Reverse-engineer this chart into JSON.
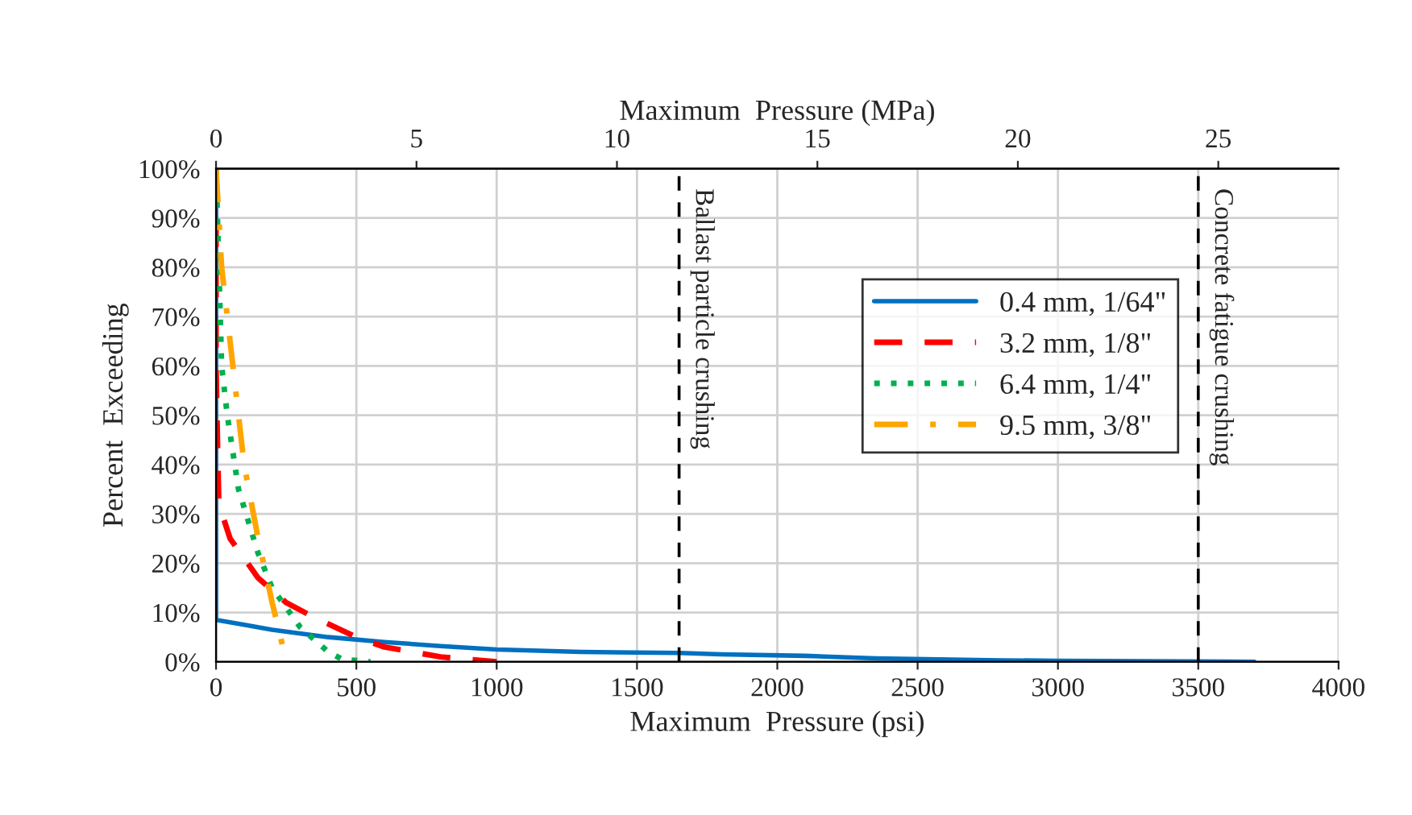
{
  "chart_data": {
    "type": "line",
    "xlabel": "Maximum  Pressure (psi)",
    "ylabel": "Percent  Exceeding",
    "x2label": "Maximum  Pressure (MPa)",
    "xlim": [
      0,
      4000
    ],
    "xticks": [
      0,
      500,
      1000,
      1500,
      2000,
      2500,
      3000,
      3500,
      4000
    ],
    "ylim": [
      0,
      100
    ],
    "yticks": [
      {
        "value": 0,
        "label": "0%"
      },
      {
        "value": 10,
        "label": "10%"
      },
      {
        "value": 20,
        "label": "20%"
      },
      {
        "value": 30,
        "label": "30%"
      },
      {
        "value": 40,
        "label": "40%"
      },
      {
        "value": 50,
        "label": "50%"
      },
      {
        "value": 60,
        "label": "60%"
      },
      {
        "value": 70,
        "label": "70%"
      },
      {
        "value": 80,
        "label": "80%"
      },
      {
        "value": 90,
        "label": "90%"
      },
      {
        "value": 100,
        "label": "100%"
      }
    ],
    "x2lim": [
      0,
      28
    ],
    "x2ticks": [
      0,
      5,
      10,
      15,
      20,
      25
    ],
    "grid": true,
    "legend": "center right",
    "series": [
      {
        "name": "0.4 mm, 1/64\"",
        "color": "#0070c0",
        "line_style": "solid",
        "x": [
          0,
          0,
          100,
          200,
          400,
          600,
          800,
          1000,
          1300,
          1650,
          1800,
          2100,
          2350,
          2800,
          3000,
          3700
        ],
        "values": [
          100,
          8.5,
          7.5,
          6.5,
          5,
          4,
          3.2,
          2.5,
          2,
          1.8,
          1.5,
          1.2,
          0.7,
          0.3,
          0.2,
          0
        ]
      },
      {
        "name": "3.2 mm, 1/8\"",
        "color": "#ff0000",
        "line_style": "dashed",
        "x": [
          0,
          0,
          5,
          10,
          50,
          150,
          250,
          350,
          500,
          600,
          800,
          1000
        ],
        "values": [
          100,
          60,
          45,
          32,
          25,
          17,
          12,
          9,
          5,
          3,
          1,
          0
        ]
      },
      {
        "name": "6.4 mm, 1/4\"",
        "color": "#00b050",
        "line_style": "dotted",
        "x": [
          0,
          10,
          20,
          40,
          80,
          150,
          200,
          300,
          400,
          450,
          550
        ],
        "values": [
          100,
          80,
          60,
          50,
          35,
          22,
          15,
          7,
          2,
          0.5,
          0
        ]
      },
      {
        "name": "9.5 mm, 3/8\"",
        "color": "#ffa500",
        "line_style": "dashdot",
        "x": [
          0,
          20,
          40,
          70,
          100,
          150,
          200,
          230,
          250
        ],
        "values": [
          100,
          80,
          70,
          55,
          40,
          25,
          12,
          5,
          0
        ]
      }
    ],
    "ref_lines": [
      {
        "axis": "x",
        "value": 1650,
        "label": "Ballast particle crushing",
        "color": "#000000",
        "line_style": "dashed"
      },
      {
        "axis": "x",
        "value": 3500,
        "label": "Concrete fatigue crushing",
        "color": "#000000",
        "line_style": "dashed"
      }
    ]
  }
}
